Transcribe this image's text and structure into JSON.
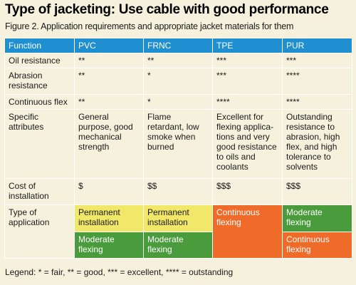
{
  "title": "Type of jacketing: Use cable with good performance",
  "subtitle": "Figure 2. Application requirements and appropriate jacket materials for them",
  "columns": [
    "Function",
    "PVC",
    "FRNC",
    "TPE",
    "PUR"
  ],
  "rows": {
    "oil": {
      "label": "Oil resistance",
      "pvc": "**",
      "frnc": "**",
      "tpe": "***",
      "pur": "***"
    },
    "abrasion": {
      "label": "Abrasion resistance",
      "pvc": "**",
      "frnc": "*",
      "tpe": "***",
      "pur": "****"
    },
    "flex": {
      "label": "Continuous flex",
      "pvc": "**",
      "frnc": "*",
      "tpe": "****",
      "pur": "****"
    },
    "attributes": {
      "label": "Specific attributes",
      "pvc": "General purpose, good mechanical strength",
      "frnc": "Flame retardant, low smoke when burned",
      "tpe": "Excellent for flexing applica-tions and very good resistance to oils and coolants",
      "pur": "Outstanding resistance to abrasion, high flex, and high tolerance to solvents"
    },
    "cost": {
      "label": "Cost of installation",
      "pvc": "$",
      "frnc": "$$",
      "tpe": "$$$",
      "pur": "$$$"
    },
    "application": {
      "label": "Type of application",
      "pvc_1": "Permanent installation",
      "pvc_2": "Moderate flexing",
      "frnc_1": "Permanent installation",
      "frnc_2": "Moderate flexing",
      "tpe": "Continuous flexing",
      "pur_1": "Moderate flexing",
      "pur_2": "Continuous flexing"
    }
  },
  "legend": "Legend: * = fair, ** = good, *** = excellent, **** = outstanding",
  "colors": {
    "header_blue": "#1f8fcf",
    "background": "#f5f1dc",
    "yellow": "#f1e86a",
    "green": "#4a9b3c",
    "orange": "#ee6b2a"
  }
}
